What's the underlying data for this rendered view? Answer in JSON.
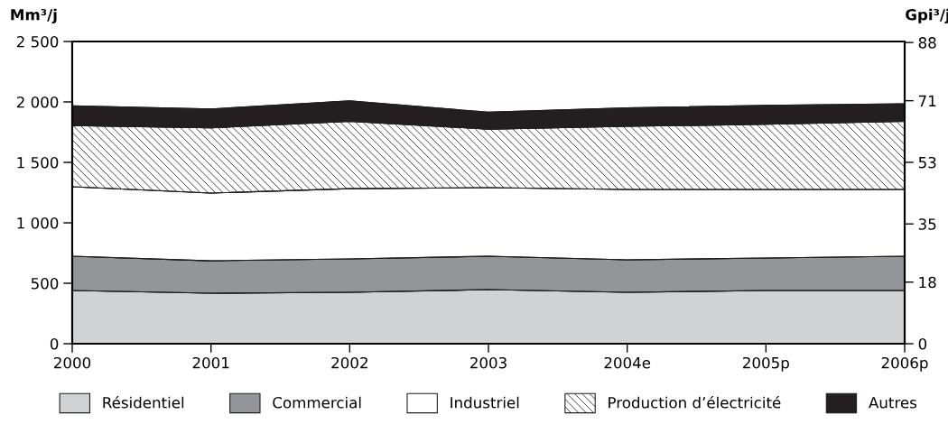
{
  "chart_data": {
    "type": "area",
    "stacked": true,
    "ylabel": "Mm³/j",
    "y2label": "Gpi³/j",
    "categories": [
      "2000",
      "2001",
      "2002",
      "2003",
      "2004e",
      "2005p",
      "2006p"
    ],
    "series": [
      {
        "name": "Résidentiel",
        "color": "#d1d2d4",
        "values": [
          440,
          418,
          425,
          448,
          425,
          440,
          440
        ]
      },
      {
        "name": "Commercial",
        "color": "#939598",
        "values": [
          284,
          268,
          276,
          276,
          269,
          269,
          284
        ]
      },
      {
        "name": "Industriel",
        "color": "#ffffff",
        "values": [
          574,
          560,
          582,
          567,
          582,
          567,
          552
        ]
      },
      {
        "name": "Production d’électricité",
        "color": "#231f20",
        "values": [
          507,
          540,
          557,
          484,
          522,
          539,
          564
        ]
      },
      {
        "name": "Autres",
        "color": "#231f20",
        "values": [
          162,
          156,
          169,
          140,
          154,
          157,
          144
        ]
      }
    ],
    "ylim": [
      0,
      2500
    ],
    "yticks": [
      0,
      500,
      {
        "value": 1000,
        "label": "1 000"
      },
      {
        "value": 1500,
        "label": "1 500"
      },
      {
        "value": 2000,
        "label": "2 000"
      },
      {
        "value": 2500,
        "label": "2 500"
      }
    ],
    "y2lim": [
      0,
      88.3
    ],
    "y2ticks": [
      0,
      18,
      35,
      53,
      71,
      88
    ],
    "grid": false,
    "legend": "bottom"
  }
}
